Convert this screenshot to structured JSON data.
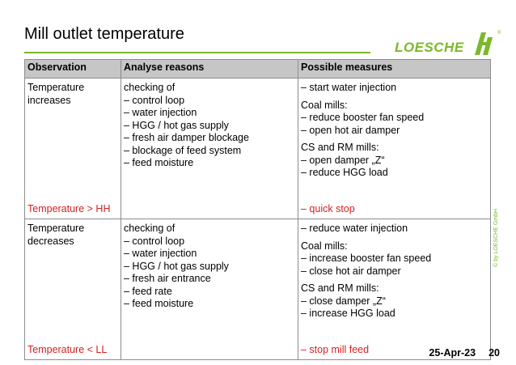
{
  "slide": {
    "title": "Mill outlet temperature",
    "logo_text": "LOESCHE",
    "copyright": "© by LOESCHE GmbH",
    "date": "25-Apr-23",
    "page_number": "20",
    "accent_color": "#7ab929",
    "alert_color": "#d42020"
  },
  "table": {
    "headers": [
      "Observation",
      "Analyse reasons",
      "Possible measures"
    ],
    "rows": [
      {
        "observation": [
          "Temperature",
          "increases"
        ],
        "observation_alert": "Temperature > HH",
        "reasons": [
          "checking of",
          "– control loop",
          "– water injection",
          "– HGG / hot gas supply",
          "– fresh air damper blockage",
          "– blockage of feed system",
          "– feed moisture"
        ],
        "measures_p1": [
          "– start water injection"
        ],
        "measures_p2": [
          "Coal mills:",
          "– reduce booster fan speed",
          "– open hot air damper"
        ],
        "measures_p3": [
          "CS and RM mills:",
          "– open damper „Z“",
          "– reduce HGG load"
        ],
        "measures_alert": "– quick stop"
      },
      {
        "observation": [
          "Temperature",
          "decreases"
        ],
        "observation_alert": "Temperature < LL",
        "reasons": [
          "checking of",
          "– control loop",
          "– water injection",
          "– HGG / hot gas supply",
          "– fresh air entrance",
          "– feed rate",
          "– feed moisture"
        ],
        "measures_p1": [
          "– reduce water injection"
        ],
        "measures_p2": [
          "Coal mills:",
          "– increase booster fan speed",
          "– close hot air damper"
        ],
        "measures_p3": [
          "CS and RM mills:",
          "– close damper „Z“",
          "– increase HGG load"
        ],
        "measures_alert": "– stop mill feed"
      }
    ]
  }
}
